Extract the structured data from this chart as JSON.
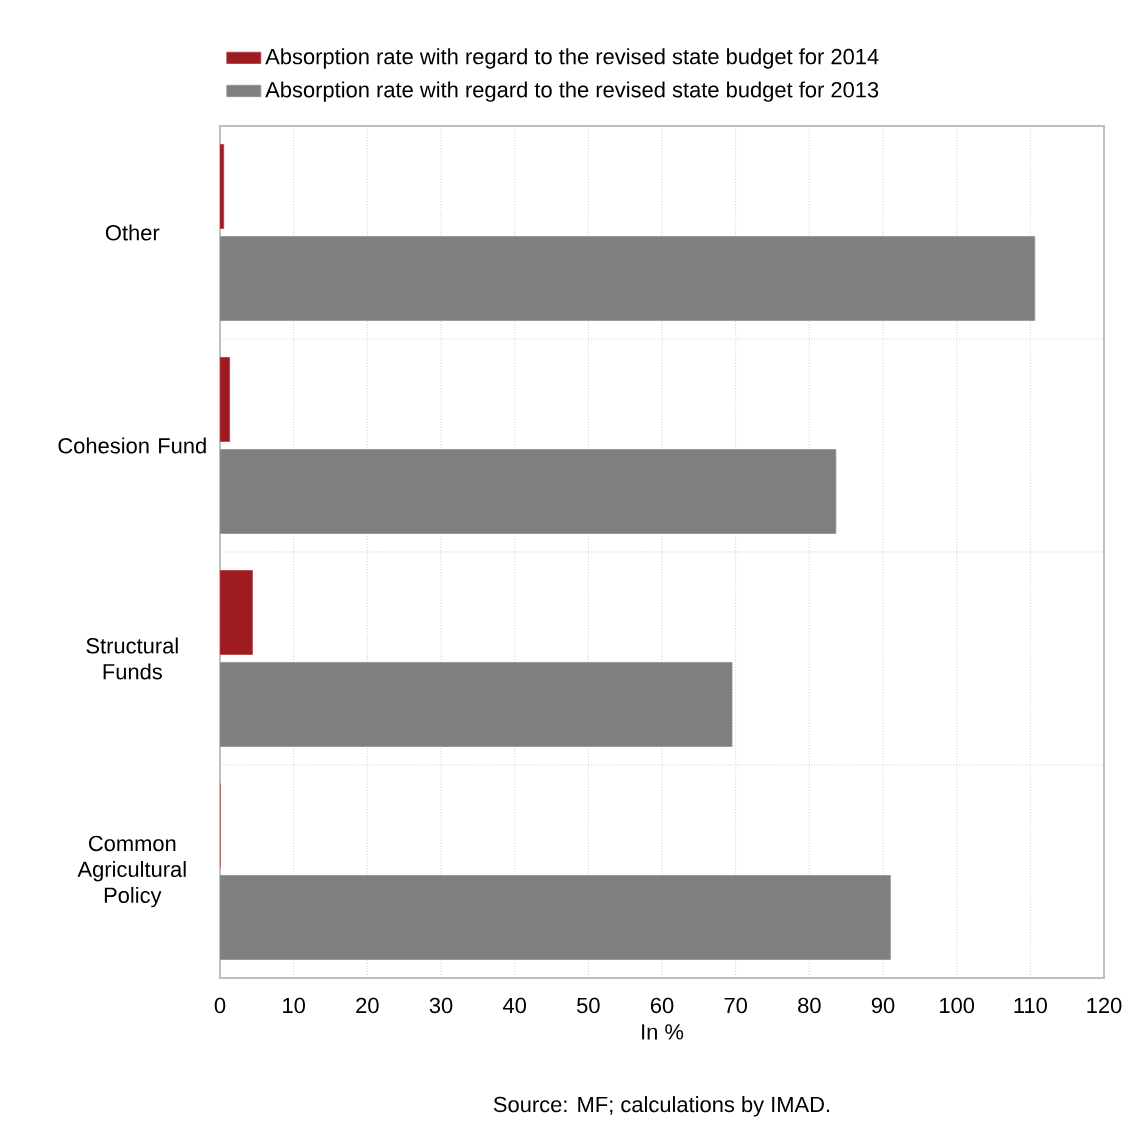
{
  "chart_data": {
    "type": "bar",
    "orientation": "horizontal",
    "categories": [
      "Other",
      "Cohesion Fund",
      "Structural Funds",
      "Common Agricultural Policy"
    ],
    "series": [
      {
        "name": "Absorption rate with regard to the revised state budget for 2014",
        "color": "#9e1b20",
        "values": [
          0.5,
          1.3,
          4.4,
          0
        ]
      },
      {
        "name": "Absorption rate with regard to the revised state budget for 2013",
        "color": "#7f7f7f",
        "values": [
          110.6,
          83.6,
          69.5,
          91.0
        ]
      }
    ],
    "xlabel": "In %",
    "annotations": [
      "Source: MF; calculations by IMAD."
    ],
    "xlim": [
      0,
      120
    ],
    "xticks": [
      0,
      10,
      20,
      30,
      40,
      50,
      60,
      70,
      80,
      90,
      100,
      110,
      120
    ],
    "grid": true,
    "legend": "top left"
  }
}
